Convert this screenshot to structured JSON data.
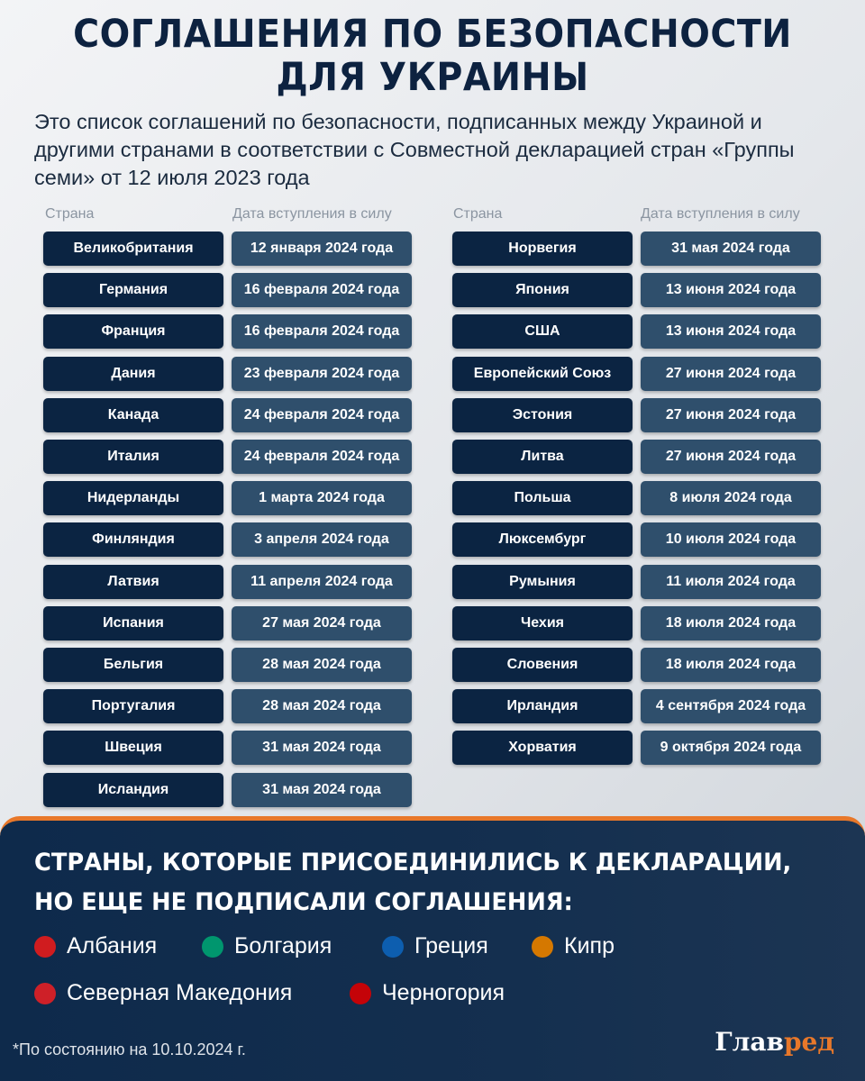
{
  "title": {
    "line1": "СОГЛАШЕНИЯ ПО БЕЗОПАСНОСТИ",
    "line2": "ДЛЯ УКРАИНЫ"
  },
  "subtitle": "Это список соглашений по безопасности, подписанных между Украиной и другими странами в соответствии с Совместной декларацией стран «Группы семи» от 12 июля 2023 года",
  "headers": {
    "country": "Страна",
    "date": "Дата вступления в силу"
  },
  "left": [
    [
      "Великобритания",
      "12 января 2024 года"
    ],
    [
      "Германия",
      "16 февраля 2024 года"
    ],
    [
      "Франция",
      "16 февраля 2024 года"
    ],
    [
      "Дания",
      "23 февраля 2024 года"
    ],
    [
      "Канада",
      "24 февраля 2024 года"
    ],
    [
      "Италия",
      "24 февраля 2024 года"
    ],
    [
      "Нидерланды",
      "1 марта 2024 года"
    ],
    [
      "Финляндия",
      "3 апреля 2024 года"
    ],
    [
      "Латвия",
      "11 апреля 2024 года"
    ],
    [
      "Испания",
      "27 мая 2024 года"
    ],
    [
      "Бельгия",
      "28 мая 2024 года"
    ],
    [
      "Португалия",
      "28 мая 2024 года"
    ],
    [
      "Швеция",
      "31 мая 2024 года"
    ],
    [
      "Исландия",
      "31 мая 2024 года"
    ]
  ],
  "right": [
    [
      "Норвегия",
      "31 мая 2024 года"
    ],
    [
      "Япония",
      "13 июня 2024 года"
    ],
    [
      "США",
      "13 июня 2024 года"
    ],
    [
      "Европейский Союз",
      "27 июня 2024 года"
    ],
    [
      "Эстония",
      "27 июня 2024 года"
    ],
    [
      "Литва",
      "27 июня 2024 года"
    ],
    [
      "Польша",
      "8 июля 2024 года"
    ],
    [
      "Люксембург",
      "10 июля 2024 года"
    ],
    [
      "Румыния",
      "11 июля 2024 года"
    ],
    [
      "Чехия",
      "18 июля 2024 года"
    ],
    [
      "Словения",
      "18 июля 2024 года"
    ],
    [
      "Ирландия",
      "4 сентября 2024 года"
    ],
    [
      "Хорватия",
      "9 октября 2024 года"
    ]
  ],
  "panel": {
    "title1": "СТРАНЫ, КОТОРЫЕ ПРИСОЕДИНИЛИСЬ К ДЕКЛАРАЦИИ,",
    "title2": "НО ЕЩЕ НЕ ПОДПИСАЛИ СОГЛАШЕНИЯ:",
    "countries": [
      {
        "name": "Албания",
        "icon": "albania-flag-icon",
        "color": "#d01c1f"
      },
      {
        "name": "Болгария",
        "icon": "bulgaria-flag-icon",
        "color": "#00966e"
      },
      {
        "name": "Греция",
        "icon": "greece-flag-icon",
        "color": "#0d5eaf"
      },
      {
        "name": "Кипр",
        "icon": "cyprus-flag-icon",
        "color": "#d57800"
      },
      {
        "name": "Северная Македония",
        "icon": "north-macedonia-flag-icon",
        "color": "#ce2028"
      },
      {
        "name": "Черногория",
        "icon": "montenegro-flag-icon",
        "color": "#c40308"
      }
    ]
  },
  "note": "*По состоянию на 10.10.2024 г.",
  "logo": {
    "part1": "Глав",
    "part2": "ред"
  },
  "colors": {
    "accent": "#e8782a",
    "country_box": "#0b2442",
    "date_box": "#2f4f6c",
    "title": "#0d2240"
  }
}
